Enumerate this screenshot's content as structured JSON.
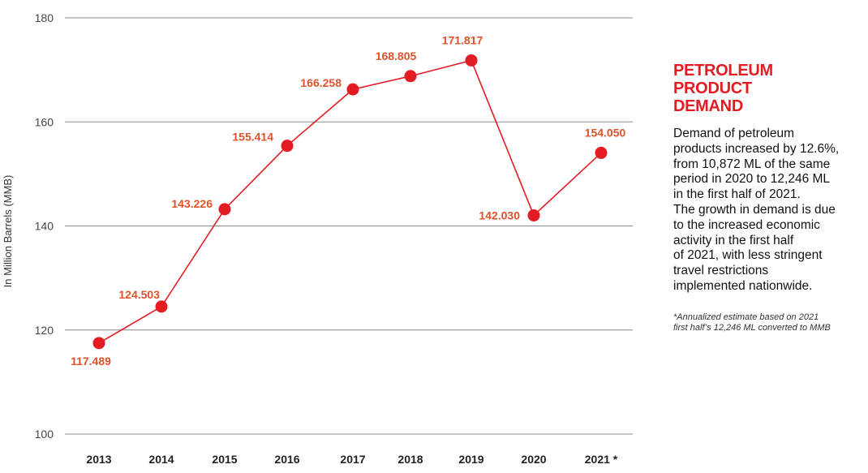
{
  "chart_data": {
    "type": "line",
    "categories": [
      "2013",
      "2014",
      "2015",
      "2016",
      "2017",
      "2018",
      "2019",
      "2020",
      "2021 *"
    ],
    "values": [
      117.489,
      124.503,
      143.226,
      155.414,
      166.258,
      168.805,
      171.817,
      142.03,
      154.05
    ],
    "value_labels": [
      "117.489",
      "124.503",
      "143.226",
      "155.414",
      "166.258",
      "168.805",
      "171.817",
      "142.030",
      "154.050"
    ],
    "ylabel": "In Million Barrels (MMB)",
    "xlabel": "",
    "ylim": [
      100,
      180
    ],
    "yticks": [
      100,
      120,
      140,
      160,
      180
    ],
    "grid": true,
    "line_color": "#e31b23",
    "marker_color": "#e31b23",
    "label_color": "#e0522a"
  },
  "side_panel": {
    "title_lines": [
      "PETROLEUM",
      "PRODUCT",
      "DEMAND"
    ],
    "body_lines": [
      "Demand of petroleum",
      "products increased by 12.6%,",
      "from 10,872 ML of the same",
      "period in 2020 to 12,246 ML",
      "in the first half of 2021.",
      "The growth in demand is due",
      "to the increased economic",
      "activity in the first half",
      "of 2021, with less stringent",
      "travel restrictions",
      "implemented nationwide."
    ],
    "footnote_lines": [
      "*Annualized estimate based on 2021",
      " first half’s 12,246 ML converted to MMB"
    ]
  }
}
